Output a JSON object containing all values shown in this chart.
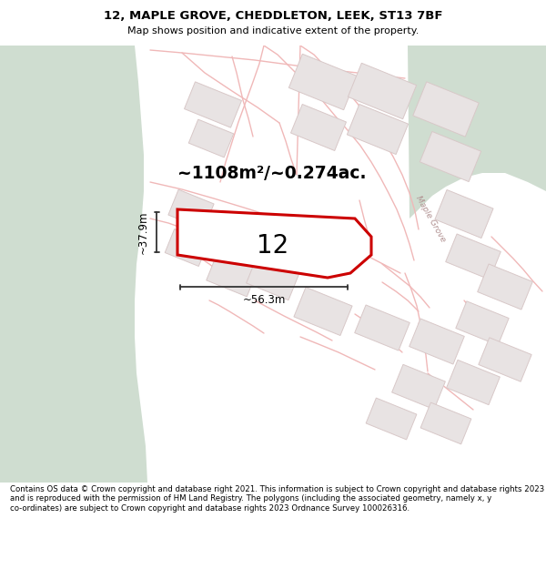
{
  "title_line1": "12, MAPLE GROVE, CHEDDLETON, LEEK, ST13 7BF",
  "title_line2": "Map shows position and indicative extent of the property.",
  "area_text": "~1108m²/~0.274ac.",
  "label_number": "12",
  "dim_width": "~56.3m",
  "dim_height": "~37.9m",
  "road_label": "Maple Grove",
  "footer_text": "Contains OS data © Crown copyright and database right 2021. This information is subject to Crown copyright and database rights 2023 and is reproduced with the permission of HM Land Registry. The polygons (including the associated geometry, namely x, y co-ordinates) are subject to Crown copyright and database rights 2023 Ordnance Survey 100026316.",
  "bg_map_color": "#f7f2f2",
  "bg_left_color": "#cfddd0",
  "bg_top_right_color": "#cfddd0",
  "plot_fill_color": "#ffffff",
  "plot_edge_color": "#cc0000",
  "building_fill": "#e8e3e3",
  "building_edge": "#d8c8c8",
  "road_color": "#f0b8b8",
  "road_fill": "#f7f2f2",
  "plot_outline_color": "#e8b8b8",
  "road_label_color": "#b09090",
  "dim_color": "#333333",
  "title_color": "#000000",
  "footer_color": "#000000",
  "white": "#ffffff"
}
